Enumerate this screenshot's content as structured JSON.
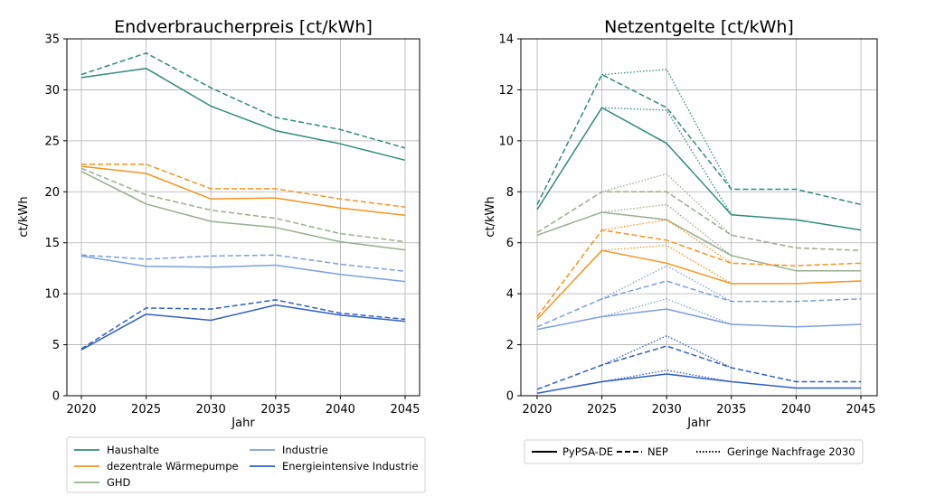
{
  "colors": {
    "haushalte": "#2e8b7a",
    "waermepumpe": "#f7941d",
    "ghd": "#98ad8f",
    "industrie": "#7b9fde",
    "energieintensive": "#2f5fc4"
  },
  "chart_data": [
    {
      "type": "line",
      "title": "Endverbraucherpreis [ct/kWh]",
      "xlabel": "Jahr",
      "ylabel": "ct/kWh",
      "x": [
        2020,
        2025,
        2030,
        2035,
        2040,
        2045
      ],
      "ylim": [
        0,
        35
      ],
      "yticks": [
        0,
        5,
        10,
        15,
        20,
        25,
        30,
        35
      ],
      "grid": true,
      "series": [
        {
          "name": "Haushalte",
          "color_key": "haushalte",
          "style": "solid",
          "values": [
            31.2,
            32.1,
            28.4,
            26.0,
            24.7,
            23.1
          ]
        },
        {
          "color_key": "haushalte",
          "style": "dashed",
          "values": [
            31.5,
            33.6,
            30.2,
            27.3,
            26.1,
            24.3
          ]
        },
        {
          "name": "dezentrale Wärmepumpe",
          "color_key": "waermepumpe",
          "style": "solid",
          "values": [
            22.5,
            21.8,
            19.3,
            19.4,
            18.4,
            17.7
          ]
        },
        {
          "color_key": "waermepumpe",
          "style": "dashed",
          "values": [
            22.7,
            22.7,
            20.3,
            20.3,
            19.3,
            18.5
          ]
        },
        {
          "name": "GHD",
          "color_key": "ghd",
          "style": "solid",
          "values": [
            22.0,
            18.8,
            17.1,
            16.5,
            15.1,
            14.3
          ]
        },
        {
          "color_key": "ghd",
          "style": "dashed",
          "values": [
            22.3,
            19.7,
            18.2,
            17.4,
            15.9,
            15.1
          ]
        },
        {
          "name": "Industrie",
          "color_key": "industrie",
          "style": "solid",
          "values": [
            13.7,
            12.7,
            12.6,
            12.8,
            11.9,
            11.2
          ]
        },
        {
          "color_key": "industrie",
          "style": "dashed",
          "values": [
            13.8,
            13.4,
            13.7,
            13.8,
            12.9,
            12.2
          ]
        },
        {
          "name": "Energieintensive Industrie",
          "color_key": "energieintensive",
          "style": "solid",
          "values": [
            4.5,
            8.0,
            7.4,
            8.9,
            7.9,
            7.3
          ]
        },
        {
          "color_key": "energieintensive",
          "style": "dashed",
          "values": [
            4.6,
            8.6,
            8.5,
            9.4,
            8.1,
            7.5
          ]
        }
      ],
      "legend": {
        "placement": "below",
        "entries": [
          {
            "label": "Haushalte",
            "color_key": "haushalte"
          },
          {
            "label": "dezentrale Wärmepumpe",
            "color_key": "waermepumpe"
          },
          {
            "label": "GHD",
            "color_key": "ghd"
          },
          {
            "label": "Industrie",
            "color_key": "industrie"
          },
          {
            "label": "Energieintensive Industrie",
            "color_key": "energieintensive"
          }
        ]
      }
    },
    {
      "type": "line",
      "title": "Netzentgelte [ct/kWh]",
      "xlabel": "Jahr",
      "ylabel": "ct/kWh",
      "x": [
        2020,
        2025,
        2030,
        2035,
        2040,
        2045
      ],
      "ylim": [
        0,
        14
      ],
      "yticks": [
        0,
        2,
        4,
        6,
        8,
        10,
        12,
        14
      ],
      "grid": true,
      "series": [
        {
          "color_key": "haushalte",
          "style": "solid",
          "values": [
            7.3,
            11.3,
            9.9,
            7.1,
            6.9,
            6.5
          ]
        },
        {
          "color_key": "haushalte",
          "style": "dashed",
          "values": [
            7.5,
            12.6,
            11.3,
            8.1,
            8.1,
            7.5
          ]
        },
        {
          "color_key": "haushalte",
          "style": "dotted",
          "x": [
            2025,
            2030,
            2035
          ],
          "values": [
            12.6,
            12.8,
            8.1
          ]
        },
        {
          "color_key": "haushalte",
          "style": "dotted",
          "x": [
            2025,
            2030,
            2035
          ],
          "values": [
            11.3,
            11.2,
            7.1
          ]
        },
        {
          "color_key": "ghd",
          "style": "solid",
          "values": [
            6.3,
            7.2,
            6.9,
            5.5,
            4.9,
            4.9
          ]
        },
        {
          "color_key": "ghd",
          "style": "dashed",
          "values": [
            6.4,
            8.0,
            8.0,
            6.3,
            5.8,
            5.7
          ]
        },
        {
          "color_key": "ghd",
          "style": "dotted",
          "x": [
            2025,
            2030,
            2035
          ],
          "values": [
            8.0,
            8.7,
            6.3
          ]
        },
        {
          "color_key": "ghd",
          "style": "dotted",
          "x": [
            2025,
            2030,
            2035
          ],
          "values": [
            7.2,
            7.5,
            5.5
          ]
        },
        {
          "color_key": "waermepumpe",
          "style": "solid",
          "values": [
            3.0,
            5.7,
            5.2,
            4.4,
            4.4,
            4.5
          ]
        },
        {
          "color_key": "waermepumpe",
          "style": "dashed",
          "values": [
            3.1,
            6.5,
            6.1,
            5.2,
            5.1,
            5.2
          ]
        },
        {
          "color_key": "waermepumpe",
          "style": "dotted",
          "x": [
            2025,
            2030,
            2035
          ],
          "values": [
            6.5,
            6.9,
            5.2
          ]
        },
        {
          "color_key": "waermepumpe",
          "style": "dotted",
          "x": [
            2025,
            2030,
            2035
          ],
          "values": [
            5.7,
            5.9,
            4.4
          ]
        },
        {
          "color_key": "industrie",
          "style": "solid",
          "values": [
            2.6,
            3.1,
            3.4,
            2.8,
            2.7,
            2.8
          ]
        },
        {
          "color_key": "industrie",
          "style": "dashed",
          "values": [
            2.7,
            3.8,
            4.5,
            3.7,
            3.7,
            3.8
          ]
        },
        {
          "color_key": "industrie",
          "style": "dotted",
          "x": [
            2025,
            2030,
            2035
          ],
          "values": [
            3.8,
            5.1,
            3.7
          ]
        },
        {
          "color_key": "industrie",
          "style": "dotted",
          "x": [
            2025,
            2030,
            2035
          ],
          "values": [
            3.1,
            3.8,
            2.8
          ]
        },
        {
          "color_key": "energieintensive",
          "style": "solid",
          "values": [
            0.1,
            0.55,
            0.85,
            0.55,
            0.3,
            0.3
          ]
        },
        {
          "color_key": "energieintensive",
          "style": "dashed",
          "values": [
            0.25,
            1.2,
            1.95,
            1.1,
            0.55,
            0.55
          ]
        },
        {
          "color_key": "energieintensive",
          "style": "dotted",
          "x": [
            2025,
            2030,
            2035
          ],
          "values": [
            1.2,
            2.35,
            1.1
          ]
        },
        {
          "color_key": "energieintensive",
          "style": "dotted",
          "x": [
            2025,
            2030,
            2035
          ],
          "values": [
            0.55,
            1.0,
            0.55
          ]
        }
      ],
      "legend": {
        "placement": "below",
        "entries": [
          {
            "label": "PyPSA-DE",
            "style": "solid"
          },
          {
            "label": "NEP",
            "style": "dashed"
          },
          {
            "label": "Geringe Nachfrage 2030",
            "style": "dotted"
          }
        ]
      }
    }
  ]
}
